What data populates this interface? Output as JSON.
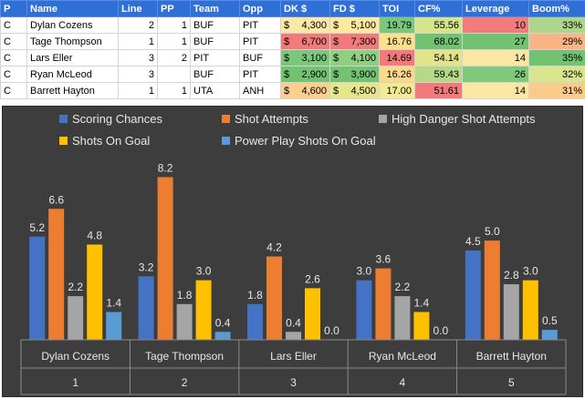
{
  "table": {
    "headers": [
      "P",
      "Name",
      "Line",
      "PP",
      "Team",
      "Opp",
      "DK $",
      "FD $",
      "TOI",
      "CF%",
      "Leverage",
      "Boom%"
    ],
    "rows": [
      {
        "p": "C",
        "name": "Dylan Cozens",
        "line": "2",
        "pp": "1",
        "team": "BUF",
        "opp": "PIT",
        "dk_sym": "$",
        "dk": "4,300",
        "fd_sym": "$",
        "fd": "5,100",
        "toi": "19.79",
        "cf": "55.56",
        "lev": "10",
        "boom": "33%",
        "colors": {
          "dk": "#fbe8a6",
          "fd": "#fde9a0",
          "toi": "#79c779",
          "cf": "#d4e58a",
          "lev": "#f27c7c",
          "boom": "#aed68a"
        }
      },
      {
        "p": "C",
        "name": "Tage Thompson",
        "line": "1",
        "pp": "1",
        "team": "BUF",
        "opp": "PIT",
        "dk_sym": "$",
        "dk": "6,700",
        "fd_sym": "$",
        "fd": "7,300",
        "toi": "16.76",
        "cf": "68.02",
        "lev": "27",
        "boom": "29%",
        "colors": {
          "dk": "#f27a7a",
          "fd": "#f27a7a",
          "toi": "#fbe28a",
          "cf": "#72c272",
          "lev": "#72c272",
          "boom": "#f9b385"
        }
      },
      {
        "p": "C",
        "name": "Lars Eller",
        "line": "3",
        "pp": "2",
        "team": "PIT",
        "opp": "BUF",
        "dk_sym": "$",
        "dk": "3,100",
        "fd_sym": "$",
        "fd": "4,100",
        "toi": "14.69",
        "cf": "54.14",
        "lev": "14",
        "boom": "35%",
        "colors": {
          "dk": "#7bc77b",
          "fd": "#8fcf7f",
          "toi": "#f27a7a",
          "cf": "#e2e48a",
          "lev": "#fbe6a3",
          "boom": "#72c272"
        }
      },
      {
        "p": "C",
        "name": "Ryan McLeod",
        "line": "3",
        "pp": "",
        "team": "BUF",
        "opp": "PIT",
        "dk_sym": "$",
        "dk": "2,900",
        "fd_sym": "$",
        "fd": "3,900",
        "toi": "16.26",
        "cf": "59.43",
        "lev": "26",
        "boom": "32%",
        "colors": {
          "dk": "#72c272",
          "fd": "#72c272",
          "toi": "#fbd88a",
          "cf": "#b6d986",
          "lev": "#80c97a",
          "boom": "#d7e58c"
        }
      },
      {
        "p": "C",
        "name": "Barrett Hayton",
        "line": "1",
        "pp": "1",
        "team": "UTA",
        "opp": "ANH",
        "dk_sym": "$",
        "dk": "4,600",
        "fd_sym": "$",
        "fd": "4,500",
        "toi": "17.00",
        "cf": "51.61",
        "lev": "14",
        "boom": "31%",
        "colors": {
          "dk": "#fbcf8e",
          "fd": "#e6e78b",
          "toi": "#f4ea92",
          "cf": "#f27a7a",
          "lev": "#fbe6a3",
          "boom": "#fbcb8a"
        }
      }
    ]
  },
  "chart_data": {
    "type": "bar",
    "categories": [
      "Dylan Cozens",
      "Tage Thompson",
      "Lars Eller",
      "Ryan McLeod",
      "Barrett Hayton"
    ],
    "category_sublabels": [
      "1",
      "2",
      "3",
      "4",
      "5"
    ],
    "series": [
      {
        "name": "Scoring Chances",
        "color": "#4472c4",
        "values": [
          5.2,
          3.2,
          1.8,
          3.0,
          4.5
        ]
      },
      {
        "name": "Shot Attempts",
        "color": "#ed7d31",
        "values": [
          6.6,
          8.2,
          4.2,
          3.6,
          5.0
        ]
      },
      {
        "name": "High Danger Shot Attempts",
        "color": "#a5a5a5",
        "values": [
          2.2,
          1.8,
          0.4,
          2.2,
          2.8
        ]
      },
      {
        "name": "Shots On Goal",
        "color": "#ffc000",
        "values": [
          4.8,
          3.0,
          2.6,
          1.4,
          3.0
        ]
      },
      {
        "name": "Power Play Shots On Goal",
        "color": "#5b9bd5",
        "values": [
          1.4,
          0.4,
          0.0,
          0.0,
          0.5
        ]
      }
    ],
    "value_labels": [
      [
        "5.2",
        "3.2",
        "1.8",
        "3.0",
        "4.5"
      ],
      [
        "6.6",
        "8.2",
        "4.2",
        "3.6",
        "5.0"
      ],
      [
        "2.2",
        "1.8",
        "0.4",
        "2.2",
        "2.8"
      ],
      [
        "4.8",
        "3.0",
        "2.6",
        "1.4",
        "3.0"
      ],
      [
        "1.4",
        "0.4",
        "0.0",
        "0.0",
        "0.5"
      ]
    ],
    "ylim": [
      0,
      9.0
    ],
    "legend": "top",
    "title": "",
    "xlabel": "",
    "ylabel": "",
    "grid": false
  }
}
